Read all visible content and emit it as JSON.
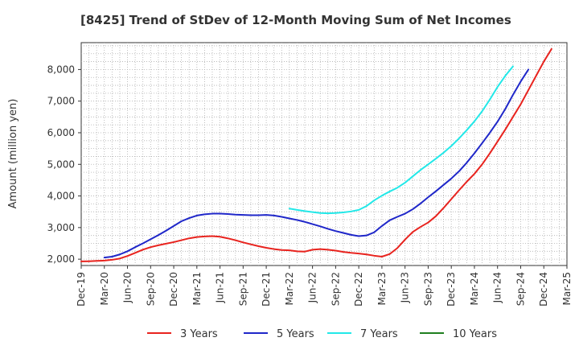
{
  "chart_data": {
    "type": "line",
    "title": "[8425]  Trend of StDev of 12-Month Moving Sum of Net Incomes",
    "ylabel": "Amount (million yen)",
    "xlabel": "",
    "ylim": [
      1800,
      8850
    ],
    "yticks": [
      2000,
      3000,
      4000,
      5000,
      6000,
      7000,
      8000
    ],
    "ytick_labels": [
      "2,000",
      "3,000",
      "4,000",
      "5,000",
      "6,000",
      "7,000",
      "8,000"
    ],
    "x_tick_labels": [
      "Dec-19",
      "Mar-20",
      "Jun-20",
      "Sep-20",
      "Dec-20",
      "Mar-21",
      "Jun-21",
      "Sep-21",
      "Dec-21",
      "Mar-22",
      "Jun-22",
      "Sep-22",
      "Dec-22",
      "Mar-23",
      "Jun-23",
      "Sep-23",
      "Dec-23",
      "Mar-24",
      "Jun-24",
      "Sep-24",
      "Dec-24",
      "Mar-25"
    ],
    "grid": true,
    "legend_position": "bottom",
    "series": [
      {
        "name": "3 Years",
        "color": "#e8231e",
        "points": [
          [
            "Dec-19",
            1930
          ],
          [
            "Jan-20",
            1935
          ],
          [
            "Feb-20",
            1945
          ],
          [
            "Mar-20",
            1955
          ],
          [
            "Apr-20",
            1980
          ],
          [
            "May-20",
            2020
          ],
          [
            "Jun-20",
            2100
          ],
          [
            "Jul-20",
            2200
          ],
          [
            "Aug-20",
            2300
          ],
          [
            "Sep-20",
            2380
          ],
          [
            "Oct-20",
            2440
          ],
          [
            "Nov-20",
            2490
          ],
          [
            "Dec-20",
            2540
          ],
          [
            "Jan-21",
            2600
          ],
          [
            "Feb-21",
            2660
          ],
          [
            "Mar-21",
            2700
          ],
          [
            "Apr-21",
            2720
          ],
          [
            "May-21",
            2730
          ],
          [
            "Jun-21",
            2710
          ],
          [
            "Jul-21",
            2660
          ],
          [
            "Aug-21",
            2600
          ],
          [
            "Sep-21",
            2530
          ],
          [
            "Oct-21",
            2470
          ],
          [
            "Nov-21",
            2410
          ],
          [
            "Dec-21",
            2360
          ],
          [
            "Jan-22",
            2320
          ],
          [
            "Feb-22",
            2290
          ],
          [
            "Mar-22",
            2280
          ],
          [
            "Apr-22",
            2250
          ],
          [
            "May-22",
            2240
          ],
          [
            "Jun-22",
            2300
          ],
          [
            "Jul-22",
            2320
          ],
          [
            "Aug-22",
            2300
          ],
          [
            "Sep-22",
            2270
          ],
          [
            "Oct-22",
            2230
          ],
          [
            "Nov-22",
            2200
          ],
          [
            "Dec-22",
            2180
          ],
          [
            "Jan-23",
            2150
          ],
          [
            "Feb-23",
            2110
          ],
          [
            "Mar-23",
            2080
          ],
          [
            "Apr-23",
            2160
          ],
          [
            "May-23",
            2350
          ],
          [
            "Jun-23",
            2620
          ],
          [
            "Jul-23",
            2860
          ],
          [
            "Aug-23",
            3020
          ],
          [
            "Sep-23",
            3160
          ],
          [
            "Oct-23",
            3360
          ],
          [
            "Nov-23",
            3620
          ],
          [
            "Dec-23",
            3900
          ],
          [
            "Jan-24",
            4180
          ],
          [
            "Feb-24",
            4450
          ],
          [
            "Mar-24",
            4700
          ],
          [
            "Apr-24",
            5000
          ],
          [
            "May-24",
            5350
          ],
          [
            "Jun-24",
            5720
          ],
          [
            "Jul-24",
            6100
          ],
          [
            "Aug-24",
            6500
          ],
          [
            "Sep-24",
            6900
          ],
          [
            "Oct-24",
            7350
          ],
          [
            "Nov-24",
            7800
          ],
          [
            "Dec-24",
            8250
          ],
          [
            "Jan-25",
            8650
          ]
        ]
      },
      {
        "name": "5 Years",
        "color": "#1f27c9",
        "points": [
          [
            "Mar-20",
            2050
          ],
          [
            "Apr-20",
            2080
          ],
          [
            "May-20",
            2150
          ],
          [
            "Jun-20",
            2250
          ],
          [
            "Jul-20",
            2380
          ],
          [
            "Aug-20",
            2500
          ],
          [
            "Sep-20",
            2630
          ],
          [
            "Oct-20",
            2760
          ],
          [
            "Nov-20",
            2900
          ],
          [
            "Dec-20",
            3050
          ],
          [
            "Jan-21",
            3200
          ],
          [
            "Feb-21",
            3300
          ],
          [
            "Mar-21",
            3380
          ],
          [
            "Apr-21",
            3420
          ],
          [
            "May-21",
            3440
          ],
          [
            "Jun-21",
            3440
          ],
          [
            "Jul-21",
            3430
          ],
          [
            "Aug-21",
            3410
          ],
          [
            "Sep-21",
            3400
          ],
          [
            "Oct-21",
            3390
          ],
          [
            "Nov-21",
            3390
          ],
          [
            "Dec-21",
            3400
          ],
          [
            "Jan-22",
            3380
          ],
          [
            "Feb-22",
            3340
          ],
          [
            "Mar-22",
            3290
          ],
          [
            "Apr-22",
            3240
          ],
          [
            "May-22",
            3180
          ],
          [
            "Jun-22",
            3110
          ],
          [
            "Jul-22",
            3040
          ],
          [
            "Aug-22",
            2960
          ],
          [
            "Sep-22",
            2890
          ],
          [
            "Oct-22",
            2830
          ],
          [
            "Nov-22",
            2770
          ],
          [
            "Dec-22",
            2730
          ],
          [
            "Jan-23",
            2750
          ],
          [
            "Feb-23",
            2850
          ],
          [
            "Mar-23",
            3050
          ],
          [
            "Apr-23",
            3230
          ],
          [
            "May-23",
            3340
          ],
          [
            "Jun-23",
            3440
          ],
          [
            "Jul-23",
            3580
          ],
          [
            "Aug-23",
            3760
          ],
          [
            "Sep-23",
            3960
          ],
          [
            "Oct-23",
            4150
          ],
          [
            "Nov-23",
            4350
          ],
          [
            "Dec-23",
            4550
          ],
          [
            "Jan-24",
            4780
          ],
          [
            "Feb-24",
            5050
          ],
          [
            "Mar-24",
            5350
          ],
          [
            "Apr-24",
            5670
          ],
          [
            "May-24",
            6000
          ],
          [
            "Jun-24",
            6350
          ],
          [
            "Jul-24",
            6750
          ],
          [
            "Aug-24",
            7200
          ],
          [
            "Sep-24",
            7620
          ],
          [
            "Oct-24",
            8000
          ]
        ]
      },
      {
        "name": "7 Years",
        "color": "#22e8e8",
        "points": [
          [
            "Mar-22",
            3600
          ],
          [
            "Apr-22",
            3560
          ],
          [
            "May-22",
            3520
          ],
          [
            "Jun-22",
            3490
          ],
          [
            "Jul-22",
            3460
          ],
          [
            "Aug-22",
            3450
          ],
          [
            "Sep-22",
            3460
          ],
          [
            "Oct-22",
            3480
          ],
          [
            "Nov-22",
            3510
          ],
          [
            "Dec-22",
            3560
          ],
          [
            "Jan-23",
            3680
          ],
          [
            "Feb-23",
            3860
          ],
          [
            "Mar-23",
            4010
          ],
          [
            "Apr-23",
            4140
          ],
          [
            "May-23",
            4260
          ],
          [
            "Jun-23",
            4420
          ],
          [
            "Jul-23",
            4620
          ],
          [
            "Aug-23",
            4820
          ],
          [
            "Sep-23",
            5000
          ],
          [
            "Oct-23",
            5180
          ],
          [
            "Nov-23",
            5370
          ],
          [
            "Dec-23",
            5580
          ],
          [
            "Jan-24",
            5820
          ],
          [
            "Feb-24",
            6080
          ],
          [
            "Mar-24",
            6360
          ],
          [
            "Apr-24",
            6680
          ],
          [
            "May-24",
            7050
          ],
          [
            "Jun-24",
            7450
          ],
          [
            "Jul-24",
            7800
          ],
          [
            "Aug-24",
            8100
          ]
        ]
      },
      {
        "name": "10 Years",
        "color": "#1f7f1f",
        "points": []
      }
    ]
  }
}
